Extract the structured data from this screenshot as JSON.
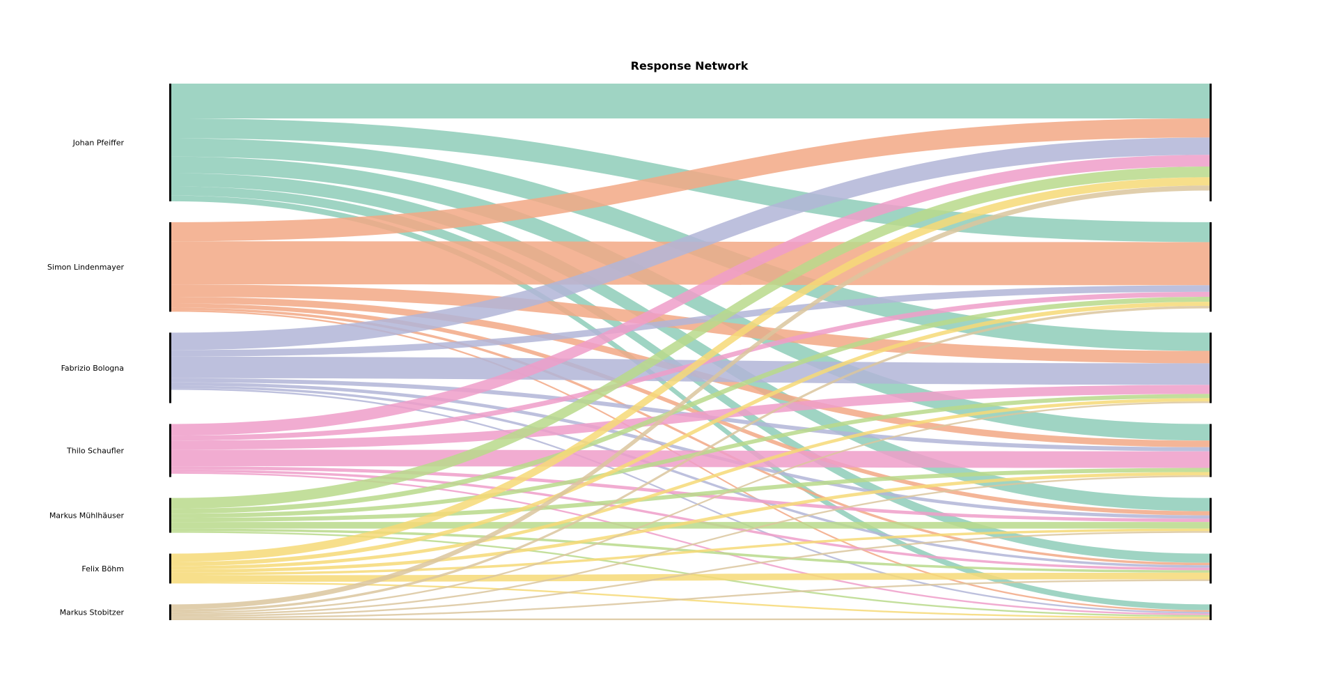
{
  "chart_data": {
    "type": "sankey",
    "title": "Response Network",
    "nodes": [
      "Johan Pfeiffer",
      "Simon Lindenmayer",
      "Fabrizio Bologna",
      "Thilo Schaufler",
      "Markus Mühlhäuser",
      "Felix Böhm",
      "Markus Stobitzer"
    ],
    "colors": [
      "#8ecdb9",
      "#f2a885",
      "#b2b5d7",
      "#ee9dc9",
      "#b8d98b",
      "#f6d977",
      "#dbc59d"
    ],
    "flows": [
      [
        42,
        24,
        22,
        20,
        16,
        11,
        7
      ],
      [
        23,
        52,
        15,
        8,
        5,
        3,
        2
      ],
      [
        21,
        8,
        26,
        5,
        4,
        3,
        2
      ],
      [
        14,
        6,
        11,
        20,
        4,
        3,
        2
      ],
      [
        13,
        6,
        5,
        5,
        8,
        3,
        2
      ],
      [
        10,
        5,
        4,
        4,
        3,
        8,
        2
      ],
      [
        6,
        3,
        2,
        2,
        2,
        2,
        2
      ]
    ]
  }
}
